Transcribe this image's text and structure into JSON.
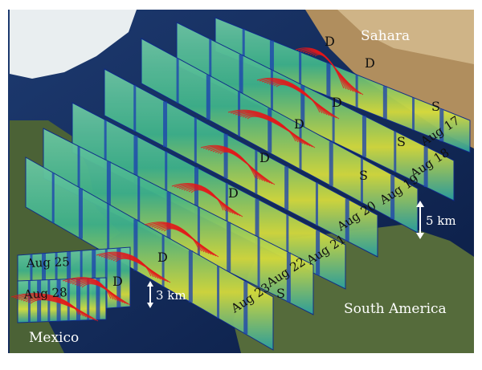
{
  "regions": [
    {
      "id": "sahara",
      "label": "Sahara"
    },
    {
      "id": "south-america",
      "label": "South America"
    },
    {
      "id": "mexico",
      "label": "Mexico"
    }
  ],
  "dates": [
    "Aug 17",
    "Aug 18",
    "Aug 19",
    "Aug 20",
    "Aug 21",
    "Aug 22",
    "Aug 23",
    "Aug 25",
    "Aug 28"
  ],
  "markers": {
    "dust": "D",
    "smoke": "S"
  },
  "scales": {
    "top": "5 km",
    "bottom": "3 km"
  },
  "colors": {
    "ocean": "#10285a",
    "land": "#4f6b3a",
    "curtain_bg": "#2aa37e",
    "curtain_dark": "#1a3fb0",
    "trajectory": "#e4181a"
  }
}
